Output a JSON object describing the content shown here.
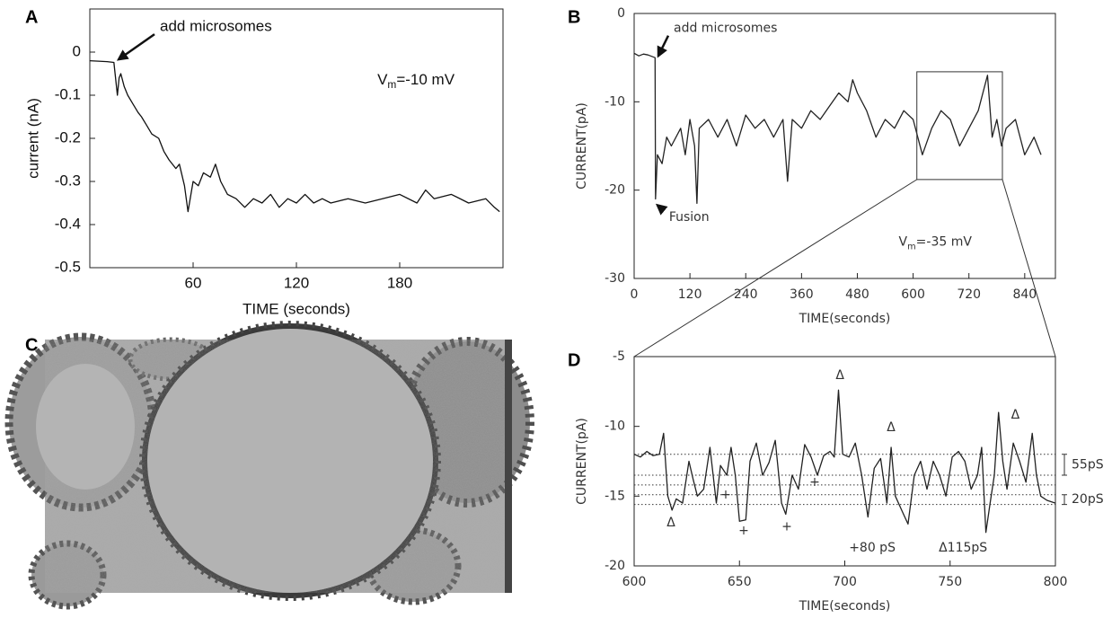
{
  "chart_data": [
    {
      "type": "line",
      "label": "A",
      "x_label": "TIME (seconds)",
      "y_label": "current (nA)",
      "color": "#111",
      "xlim": [
        0,
        240
      ],
      "ylim": [
        -0.5,
        0.1
      ],
      "xticks": [
        60,
        120,
        180
      ],
      "yticks": [
        0,
        -0.1,
        -0.2,
        -0.3,
        -0.4,
        -0.5
      ],
      "x": [
        0,
        5,
        10,
        14,
        16,
        17,
        18,
        20,
        22,
        25,
        28,
        30,
        33,
        36,
        40,
        43,
        46,
        50,
        52,
        55,
        57,
        60,
        63,
        66,
        70,
        73,
        76,
        80,
        85,
        90,
        95,
        100,
        105,
        110,
        115,
        120,
        125,
        130,
        135,
        140,
        150,
        160,
        170,
        180,
        190,
        195,
        200,
        210,
        220,
        230,
        235,
        238
      ],
      "values": [
        -0.02,
        -0.021,
        -0.022,
        -0.024,
        -0.1,
        -0.06,
        -0.05,
        -0.08,
        -0.1,
        -0.12,
        -0.14,
        -0.15,
        -0.17,
        -0.19,
        -0.2,
        -0.23,
        -0.25,
        -0.27,
        -0.26,
        -0.31,
        -0.37,
        -0.3,
        -0.31,
        -0.28,
        -0.29,
        -0.26,
        -0.3,
        -0.33,
        -0.34,
        -0.36,
        -0.34,
        -0.35,
        -0.33,
        -0.36,
        -0.34,
        -0.35,
        -0.33,
        -0.35,
        -0.34,
        -0.35,
        -0.34,
        -0.35,
        -0.34,
        -0.33,
        -0.35,
        -0.32,
        -0.34,
        -0.33,
        -0.35,
        -0.34,
        -0.36,
        -0.37
      ],
      "annotations": [
        {
          "text": "add microsomes",
          "x": 40.7,
          "y": 0.058,
          "arrow": [
            16.7,
            -0.017
          ]
        },
        {
          "parts": [
            "V",
            "m",
            "=-10 mV"
          ],
          "x": 167,
          "y": -0.067
        }
      ]
    },
    {
      "type": "line",
      "label": "B",
      "x_label": "TIME(seconds)",
      "y_label": "CURRENT(pA)",
      "color": "#222",
      "xlim": [
        0,
        906
      ],
      "ylim": [
        -30,
        0
      ],
      "xticks": [
        0,
        120,
        240,
        360,
        480,
        600,
        720,
        840
      ],
      "yticks": [
        -30,
        -20,
        -10,
        0
      ],
      "x": [
        0,
        10,
        20,
        30,
        40,
        45,
        46,
        50,
        60,
        70,
        80,
        100,
        110,
        120,
        130,
        135,
        140,
        160,
        180,
        200,
        220,
        240,
        260,
        280,
        300,
        320,
        330,
        340,
        360,
        380,
        400,
        420,
        440,
        460,
        470,
        480,
        500,
        520,
        540,
        560,
        580,
        600,
        620,
        640,
        660,
        680,
        700,
        720,
        740,
        760,
        770,
        780,
        790,
        800,
        820,
        840,
        860,
        875
      ],
      "values": [
        -4.5,
        -4.8,
        -4.6,
        -4.7,
        -4.9,
        -5,
        -21,
        -16,
        -17,
        -14,
        -15,
        -13,
        -16,
        -12,
        -15,
        -21.5,
        -13,
        -12,
        -14,
        -12,
        -15,
        -11.5,
        -13,
        -12,
        -14,
        -12,
        -19,
        -12,
        -13,
        -11,
        -12,
        -10.5,
        -9,
        -10,
        -7.5,
        -9,
        -11,
        -14,
        -12,
        -13,
        -11,
        -12,
        -16,
        -13,
        -11,
        -12,
        -15,
        -13,
        -11,
        -7,
        -14,
        -12,
        -15,
        -13,
        -12,
        -16,
        -14,
        -16
      ],
      "annotations": [
        {
          "text": "add microsomes",
          "x": 85,
          "y": -1.7,
          "arrow": [
            52,
            -4.8
          ]
        },
        {
          "text": "Fusion",
          "x": 75,
          "y": -23.1,
          "arrow": [
            50,
            -21.7
          ]
        },
        {
          "parts": [
            "V",
            "m",
            "=-35 mV"
          ],
          "x": 569,
          "y": -25.9
        }
      ],
      "zoom_box": {
        "xlim": [
          608,
          792
        ],
        "ylim": [
          -18.8,
          -6.6
        ]
      }
    },
    {
      "type": "line",
      "label": "D",
      "x_label": "TIME(seconds)",
      "y_label": "CURRENT(pA)",
      "color": "#222",
      "xlim": [
        600,
        800
      ],
      "ylim": [
        -20,
        -5
      ],
      "xticks": [
        600,
        650,
        700,
        750,
        800
      ],
      "yticks": [
        -20,
        -15,
        -10,
        -5
      ],
      "x": [
        600,
        603,
        606,
        609,
        612,
        614,
        616,
        618,
        620,
        623,
        626,
        628,
        630,
        633,
        636,
        639,
        641,
        644,
        646,
        648,
        650,
        653,
        655,
        658,
        661,
        664,
        667,
        670,
        672,
        675,
        678,
        681,
        684,
        687,
        690,
        693,
        695,
        697,
        699,
        702,
        705,
        708,
        711,
        714,
        717,
        720,
        722,
        724,
        727,
        730,
        733,
        736,
        739,
        742,
        745,
        748,
        751,
        754,
        757,
        760,
        763,
        765,
        767,
        769,
        771,
        773,
        775,
        777,
        780,
        783,
        786,
        789,
        791,
        793,
        796,
        800
      ],
      "values": [
        -12,
        -12.2,
        -11.8,
        -12.1,
        -12,
        -10.5,
        -15,
        -16,
        -15.2,
        -15.5,
        -12.5,
        -13.8,
        -15,
        -14.5,
        -11.5,
        -15.5,
        -12.8,
        -13.5,
        -11.5,
        -13.5,
        -16.8,
        -16.7,
        -12.5,
        -11.2,
        -13.5,
        -12.6,
        -11,
        -15.5,
        -16.3,
        -13.5,
        -14.5,
        -11.3,
        -12.2,
        -13.5,
        -12.1,
        -11.8,
        -12.2,
        -7.4,
        -12,
        -12.2,
        -11.2,
        -13.5,
        -16.5,
        -13,
        -12.3,
        -15.5,
        -11.5,
        -15,
        -16,
        -17,
        -13.5,
        -12.5,
        -14.5,
        -12.5,
        -13.5,
        -15,
        -12.2,
        -11.8,
        -12.5,
        -14.5,
        -13.5,
        -11.5,
        -17.6,
        -15.5,
        -13.5,
        -9,
        -12.5,
        -14.5,
        -11.2,
        -12.5,
        -14,
        -10.5,
        -13.5,
        -15,
        -15.3,
        -15.5
      ],
      "reference_lines": [
        -12,
        -13.5,
        -14.2,
        -14.9,
        -15.6
      ],
      "brackets": [
        {
          "label": "55pS",
          "from": -12,
          "to": -13.5
        },
        {
          "label": "20pS",
          "from": -14.9,
          "to": -15.6
        }
      ],
      "markers": [
        {
          "symbol": "Δ",
          "x": 697.7,
          "y": -6.35
        },
        {
          "symbol": "Δ",
          "x": 722,
          "y": -10.1
        },
        {
          "symbol": "Δ",
          "x": 781,
          "y": -9.2
        },
        {
          "symbol": "Δ",
          "x": 617.5,
          "y": -16.9
        },
        {
          "symbol": "+",
          "x": 643.5,
          "y": -14.9
        },
        {
          "symbol": "+",
          "x": 652,
          "y": -17.5
        },
        {
          "symbol": "+",
          "x": 672.5,
          "y": -17.2
        },
        {
          "symbol": "+",
          "x": 685.7,
          "y": -14
        }
      ],
      "annotations": [
        {
          "text": "+80 pS",
          "x": 702,
          "y": -18.7
        },
        {
          "text": "Δ115pS",
          "x": 744.6,
          "y": -18.7
        }
      ]
    }
  ],
  "micrograph": {
    "label": "C"
  }
}
